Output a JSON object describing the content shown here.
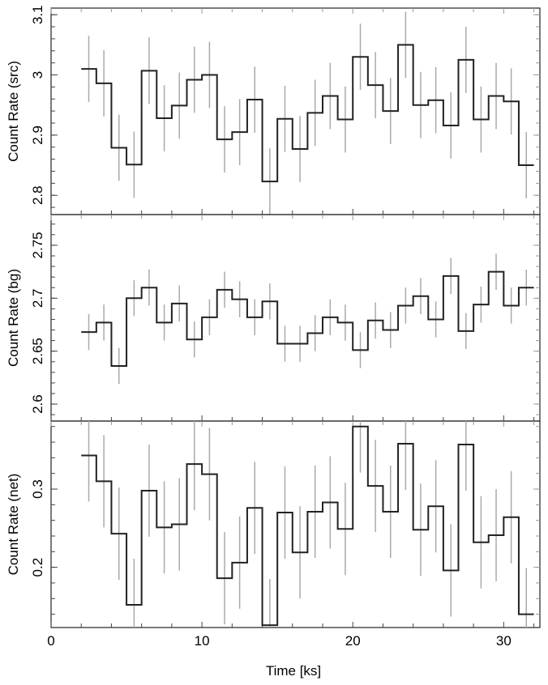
{
  "chart_data": {
    "type": "line",
    "style": "step histogram with error bars",
    "xlabel": "Time [ks]",
    "xlim": [
      0,
      32.4
    ],
    "xticks": [
      0,
      10,
      20,
      30
    ],
    "xtick_labels": [
      "0",
      "10",
      "20",
      "30"
    ],
    "bin_starts": [
      2,
      3,
      4,
      5,
      6,
      7,
      8,
      9,
      10,
      11,
      12,
      13,
      14,
      15,
      16,
      17,
      18,
      19,
      20,
      21,
      22,
      23,
      24,
      25,
      26,
      27,
      28,
      29,
      30,
      31
    ],
    "bin_width": 1,
    "line_color": "#222222",
    "errorbar_color": "#aaaaaa",
    "panels": [
      {
        "ylabel": "Count Rate (src)",
        "ylim": [
          2.768,
          3.111
        ],
        "yticks": [
          2.8,
          2.9,
          3.0,
          3.1
        ],
        "ytick_labels": [
          "2.8",
          "2.9",
          "3",
          "3.1"
        ],
        "minor_step": 0.02,
        "values": [
          3.01,
          2.986,
          2.879,
          2.851,
          3.007,
          2.928,
          2.949,
          2.992,
          3.0,
          2.893,
          2.905,
          2.959,
          2.823,
          2.927,
          2.877,
          2.937,
          2.965,
          2.926,
          3.03,
          2.983,
          2.94,
          3.05,
          2.95,
          2.958,
          2.916,
          3.025,
          2.926,
          2.965,
          2.956,
          2.85
        ],
        "error": 0.055
      },
      {
        "ylabel": "Count Rate (bg)",
        "ylim": [
          2.584,
          2.779
        ],
        "yticks": [
          2.6,
          2.65,
          2.7,
          2.75
        ],
        "ytick_labels": [
          "2.6",
          "2.65",
          "2.7",
          "2.75"
        ],
        "minor_step": 0.01,
        "values": [
          2.668,
          2.677,
          2.636,
          2.7,
          2.71,
          2.677,
          2.695,
          2.661,
          2.682,
          2.708,
          2.699,
          2.682,
          2.697,
          2.657,
          2.657,
          2.667,
          2.682,
          2.677,
          2.651,
          2.679,
          2.67,
          2.693,
          2.702,
          2.68,
          2.721,
          2.669,
          2.694,
          2.725,
          2.693,
          2.71
        ],
        "error": 0.017
      },
      {
        "ylabel": "Count Rate (net)",
        "ylim": [
          0.123,
          0.387
        ],
        "yticks": [
          0.2,
          0.3
        ],
        "ytick_labels": [
          "0.2",
          "0.3"
        ],
        "minor_step": 0.02,
        "values": [
          0.343,
          0.31,
          0.243,
          0.152,
          0.298,
          0.251,
          0.255,
          0.332,
          0.319,
          0.186,
          0.206,
          0.276,
          0.126,
          0.27,
          0.219,
          0.271,
          0.283,
          0.249,
          0.38,
          0.304,
          0.271,
          0.358,
          0.248,
          0.278,
          0.196,
          0.357,
          0.232,
          0.241,
          0.264,
          0.14
        ],
        "error": 0.059
      }
    ]
  }
}
